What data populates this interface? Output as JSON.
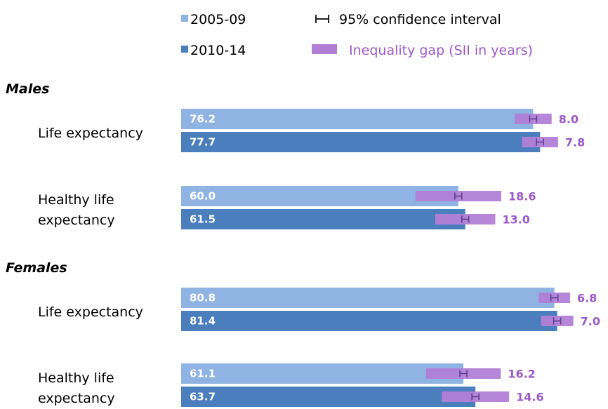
{
  "chart_data": {
    "type": "bar",
    "orientation": "horizontal",
    "legend": {
      "period_2005": "2005-09",
      "period_2010": "2010-14",
      "ci_label": "95% confidence interval",
      "gap_label": "Inequality gap (SII in years)"
    },
    "colors": {
      "period_2005": "#8fb4e3",
      "period_2010": "#4a7ebd",
      "gap": "#b27fd6",
      "gap_text": "#9b59c7"
    },
    "groups": [
      {
        "section": "Males",
        "measures": [
          {
            "label": "Life expectancy",
            "values": [
              76.2,
              77.7
            ],
            "gaps": [
              8.0,
              7.8
            ],
            "value_labels": [
              "76.2",
              "77.7"
            ],
            "gap_labels": [
              "8.0",
              "7.8"
            ]
          },
          {
            "label": "Healthy life expectancy",
            "values": [
              60.0,
              61.5
            ],
            "gaps": [
              18.6,
              13.0
            ],
            "value_labels": [
              "60.0",
              "61.5"
            ],
            "gap_labels": [
              "18.6",
              "13.0"
            ]
          }
        ]
      },
      {
        "section": "Females",
        "measures": [
          {
            "label": "Life expectancy",
            "values": [
              80.8,
              81.4
            ],
            "gaps": [
              6.8,
              7.0
            ],
            "value_labels": [
              "80.8",
              "81.4"
            ],
            "gap_labels": [
              "6.8",
              "7.0"
            ]
          },
          {
            "label": "Healthy life expectancy",
            "values": [
              61.1,
              63.7
            ],
            "gaps": [
              16.2,
              14.6
            ],
            "value_labels": [
              "61.1",
              "63.7"
            ],
            "gap_labels": [
              "16.2",
              "14.6"
            ]
          }
        ]
      }
    ],
    "xlim": [
      0,
      90
    ],
    "xlabel": "",
    "ylabel": ""
  }
}
